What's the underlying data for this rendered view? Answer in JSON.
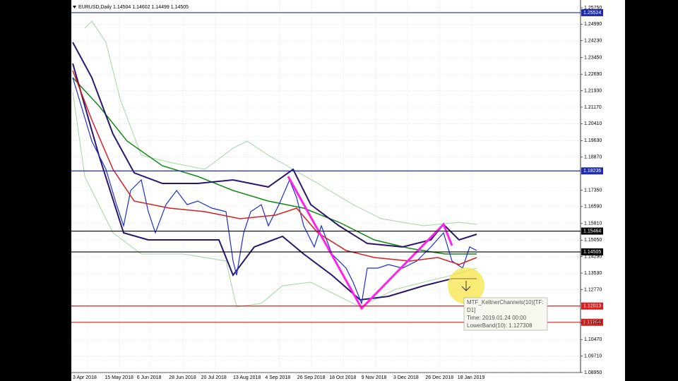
{
  "header": {
    "title": "EURUSD,Daily  1.14504 1.14602 1.14499 1.14505"
  },
  "price_axis": {
    "labels": [
      "1.25750",
      "1.24990",
      "1.24230",
      "1.23450",
      "1.22690",
      "1.21930",
      "1.21170",
      "1.20410",
      "1.19630",
      "1.18870",
      "1.17350",
      "1.16590",
      "1.15810",
      "1.15050",
      "1.14290",
      "1.13530",
      "1.12770",
      "1.11250",
      "1.10470",
      "1.09710",
      "1.08950"
    ],
    "levels": [
      {
        "label": "1.25524",
        "color": "#1c2bb0"
      },
      {
        "label": "1.18236",
        "color": "#1c2bb0"
      },
      {
        "label": "1.15464",
        "color": "#000000"
      },
      {
        "label": "1.14505",
        "color": "#000000"
      },
      {
        "label": "1.12013",
        "color": "#d81e1e"
      },
      {
        "label": "1.11264",
        "color": "#d81e1e"
      }
    ]
  },
  "time_axis": {
    "labels": [
      "3 Apr 2018",
      "15 May 2018",
      "6 Jun 2018",
      "28 Jun 2018",
      "20 Jul 2018",
      "13 Aug 2018",
      "4 Sep 2018",
      "26 Sep 2018",
      "18 Oct 2018",
      "9 Nov 2018",
      "3 Dec 2018",
      "26 Dec 2018",
      "18 Jan 2019"
    ]
  },
  "tooltip": {
    "lines": [
      "MTF_KeltnerChannels(10)[TF:",
      "D1]",
      "Time: 2019.01.24 00:00",
      "LowerBand(10): 1.127308"
    ]
  }
}
